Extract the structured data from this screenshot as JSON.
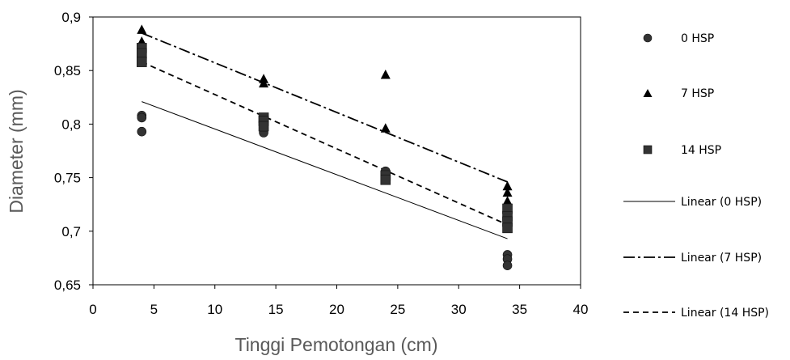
{
  "chart_data": {
    "type": "scatter",
    "title": "",
    "xlabel": "Tinggi Pemotongan (cm)",
    "ylabel": "Diameter (mm)",
    "xlim": [
      0,
      40
    ],
    "ylim": [
      0.65,
      0.9
    ],
    "x_ticks": [
      0,
      5,
      10,
      15,
      20,
      25,
      30,
      35,
      40
    ],
    "y_ticks": [
      0.65,
      0.7,
      0.75,
      0.8,
      0.85,
      0.9
    ],
    "y_tick_labels": [
      "0,65",
      "0,7",
      "0,75",
      "0,8",
      "0,85",
      "0,9"
    ],
    "grid": false,
    "legend_position": "right",
    "series": [
      {
        "name": "0 HSP",
        "marker": "circle",
        "color": "#333333",
        "points": [
          [
            4,
            0.808
          ],
          [
            4,
            0.806
          ],
          [
            4,
            0.793
          ],
          [
            14,
            0.802
          ],
          [
            14,
            0.796
          ],
          [
            14,
            0.792
          ],
          [
            24,
            0.756
          ],
          [
            24,
            0.752
          ],
          [
            24,
            0.749
          ],
          [
            34,
            0.678
          ],
          [
            34,
            0.674
          ],
          [
            34,
            0.668
          ]
        ]
      },
      {
        "name": "7 HSP",
        "marker": "triangle",
        "color": "#000000",
        "points": [
          [
            4,
            0.888
          ],
          [
            4,
            0.877
          ],
          [
            14,
            0.842
          ],
          [
            14,
            0.838
          ],
          [
            24,
            0.846
          ],
          [
            24,
            0.796
          ],
          [
            34,
            0.742
          ],
          [
            34,
            0.736
          ],
          [
            34,
            0.728
          ]
        ]
      },
      {
        "name": "14 HSP",
        "marker": "square",
        "color": "#333333",
        "points": [
          [
            4,
            0.871
          ],
          [
            4,
            0.866
          ],
          [
            4,
            0.858
          ],
          [
            14,
            0.806
          ],
          [
            14,
            0.803
          ],
          [
            14,
            0.798
          ],
          [
            24,
            0.752
          ],
          [
            24,
            0.748
          ],
          [
            34,
            0.721
          ],
          [
            34,
            0.714
          ],
          [
            34,
            0.709
          ],
          [
            34,
            0.703
          ]
        ]
      }
    ],
    "trendlines": [
      {
        "name": "Linear (0 HSP)",
        "dash": "solid",
        "x": [
          4,
          34
        ],
        "y": [
          0.821,
          0.693
        ]
      },
      {
        "name": "Linear (7 HSP)",
        "dash": "dash-dot",
        "x": [
          4,
          34
        ],
        "y": [
          0.885,
          0.746
        ]
      },
      {
        "name": "Linear (14 HSP)",
        "dash": "dash",
        "x": [
          4,
          34
        ],
        "y": [
          0.858,
          0.706
        ]
      }
    ]
  }
}
